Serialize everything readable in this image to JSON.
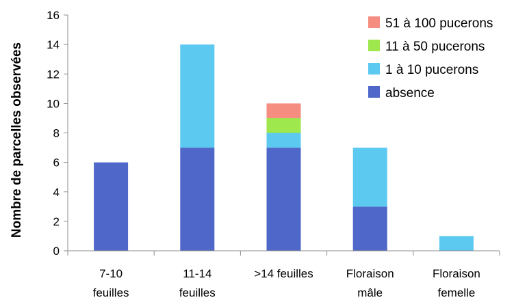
{
  "chart_data": {
    "type": "bar",
    "stacked": true,
    "categories": [
      [
        "7-10",
        "feuilles"
      ],
      [
        "11-14",
        "feuilles"
      ],
      [
        ">14 feuilles"
      ],
      [
        "Floraison",
        "mâle"
      ],
      [
        "Floraison",
        "femelle"
      ]
    ],
    "series": [
      {
        "name": "absence",
        "color": "#4f67c9",
        "values": [
          6,
          7,
          7,
          3,
          0
        ]
      },
      {
        "name": "1 à 10 pucerons",
        "color": "#5ccaf0",
        "values": [
          0,
          7,
          1,
          4,
          1
        ]
      },
      {
        "name": "11 à 50 pucerons",
        "color": "#9ee84d",
        "values": [
          0,
          0,
          1,
          0,
          0
        ]
      },
      {
        "name": "51 à 100 pucerons",
        "color": "#f58d80",
        "values": [
          0,
          0,
          1,
          0,
          0
        ]
      }
    ],
    "ylabel": "Nombre de parcelles observées",
    "xlabel": "",
    "title": "",
    "ylim": [
      0,
      16
    ],
    "yticks": [
      0,
      2,
      4,
      6,
      8,
      10,
      12,
      14,
      16
    ],
    "grid": false,
    "legend": "top-right"
  }
}
